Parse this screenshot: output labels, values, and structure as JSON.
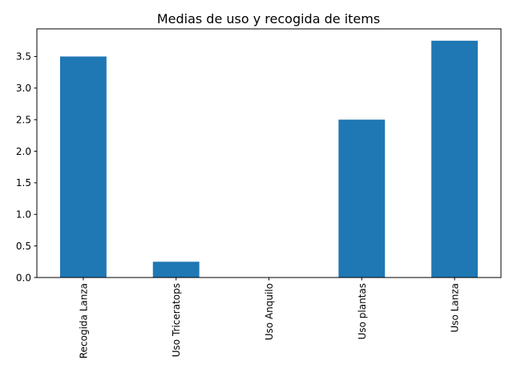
{
  "chart_data": {
    "type": "bar",
    "title": "Medias de uso y recogida de items",
    "categories": [
      "Recogida Lanza",
      "Uso Triceratops",
      "Uso Anquilo",
      "Uso plantas",
      "Uso Lanza"
    ],
    "values": [
      3.5,
      0.25,
      0.0,
      2.5,
      3.75
    ],
    "ylim": [
      0,
      3.9375
    ],
    "yticks": [
      "0.0",
      "0.5",
      "1.0",
      "1.5",
      "2.0",
      "2.5",
      "3.0",
      "3.5"
    ],
    "grid": false,
    "legend": "none",
    "bar_color": "#1f77b4",
    "axis_color": "#000000"
  }
}
